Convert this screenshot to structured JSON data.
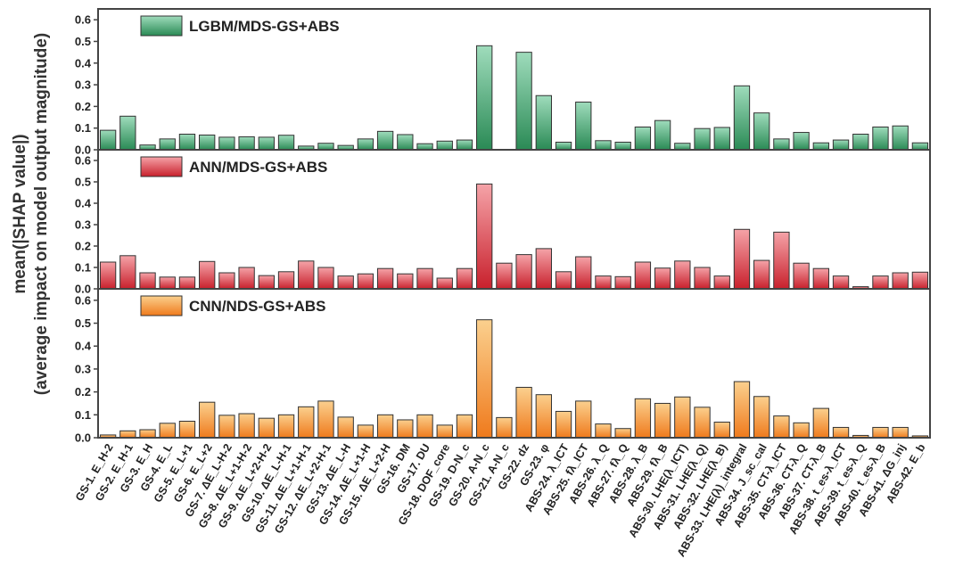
{
  "chart_data": {
    "type": "bar",
    "ylabel_line1": "mean(|SHAP value|)",
    "ylabel_line2": "(average impact on model output magnitude)",
    "categories": [
      "GS-1. E_H-2",
      "GS-2. E_H-1",
      "GS-3. E_H",
      "GS-4. E_L",
      "GS-5. E_L+1",
      "GS-6. E_L+2",
      "GS-7. ΔE_L-H-2",
      "GS-8. ΔE_L+1-H-2",
      "GS-9. ΔE_L+2-H-2",
      "GS-10. ΔE_L-H-1",
      "GS-11. ΔE_L+1-H-1",
      "GS-12. ΔE_L+2-H-1",
      "GS-13. ΔE_L-H",
      "GS-14. ΔE_L+1-H",
      "GS-15. ΔE_L+2-H",
      "GS-16. DM",
      "GS-17. DU",
      "GS-18. DOF_core",
      "GS-19. D-N_c",
      "GS-20. A-N_c",
      "GS-21. A-N_c",
      "GS-22. dz",
      "GS-23. φ",
      "ABS-24. λ_ICT",
      "ABS-25. fλ_ICT",
      "ABS-26. λ_Q",
      "ABS-27. fλ_Q",
      "ABS-28. λ_B",
      "ABS-29. fλ_B",
      "ABS-30. LHE(λ_ICT)",
      "ABS-31. LHE(λ_Q)",
      "ABS-32. LHE(λ_B)",
      "ABS-33. LHE(λ)_integral",
      "ABS-34. J_sc_cal",
      "ABS-35. CT-λ_ICT",
      "ABS-36. CT-λ_Q",
      "ABS-37. CT-λ_B",
      "ABS-38. t_es-λ_ICT",
      "ABS-39. t_es-λ_Q",
      "ABS-40. t_es-λ_B",
      "ABS-41. ΔG_inj",
      "ABS-42. E_b"
    ],
    "ylim": [
      0,
      0.65
    ],
    "yticks": [
      "0.0",
      "0.1",
      "0.2",
      "0.3",
      "0.4",
      "0.5",
      "0.6"
    ],
    "series": [
      {
        "name": "LGBM/MDS-GS+ABS",
        "color_light": "#9fdcbc",
        "color_dark": "#2a8a55",
        "values": [
          0.09,
          0.155,
          0.022,
          0.05,
          0.072,
          0.068,
          0.058,
          0.06,
          0.058,
          0.067,
          0.017,
          0.03,
          0.02,
          0.05,
          0.085,
          0.07,
          0.028,
          0.04,
          0.045,
          0.48,
          0.0,
          0.45,
          0.25,
          0.035,
          0.22,
          0.042,
          0.035,
          0.105,
          0.135,
          0.03,
          0.098,
          0.103,
          0.295,
          0.17,
          0.05,
          0.08,
          0.032,
          0.045,
          0.072,
          0.105,
          0.11,
          0.032
        ]
      },
      {
        "name": "ANN/MDS-GS+ABS",
        "color_light": "#f5a3a8",
        "color_dark": "#c8202c",
        "values": [
          0.125,
          0.155,
          0.075,
          0.055,
          0.055,
          0.128,
          0.075,
          0.1,
          0.062,
          0.08,
          0.13,
          0.1,
          0.06,
          0.07,
          0.095,
          0.07,
          0.095,
          0.05,
          0.095,
          0.49,
          0.12,
          0.16,
          0.188,
          0.08,
          0.15,
          0.06,
          0.057,
          0.125,
          0.097,
          0.13,
          0.1,
          0.06,
          0.278,
          0.133,
          0.265,
          0.12,
          0.095,
          0.06,
          0.01,
          0.06,
          0.075,
          0.078
        ]
      },
      {
        "name": "CNN/NDS-GS+ABS",
        "color_light": "#fbd08e",
        "color_dark": "#ef7a1c",
        "values": [
          0.012,
          0.03,
          0.035,
          0.063,
          0.072,
          0.155,
          0.098,
          0.105,
          0.085,
          0.1,
          0.135,
          0.16,
          0.09,
          0.055,
          0.1,
          0.078,
          0.1,
          0.055,
          0.1,
          0.515,
          0.088,
          0.22,
          0.188,
          0.115,
          0.16,
          0.06,
          0.04,
          0.17,
          0.15,
          0.178,
          0.133,
          0.068,
          0.245,
          0.18,
          0.095,
          0.065,
          0.128,
          0.045,
          0.01,
          0.045,
          0.045,
          0.008
        ]
      }
    ],
    "legend_placement": "top-left",
    "grid": false
  }
}
